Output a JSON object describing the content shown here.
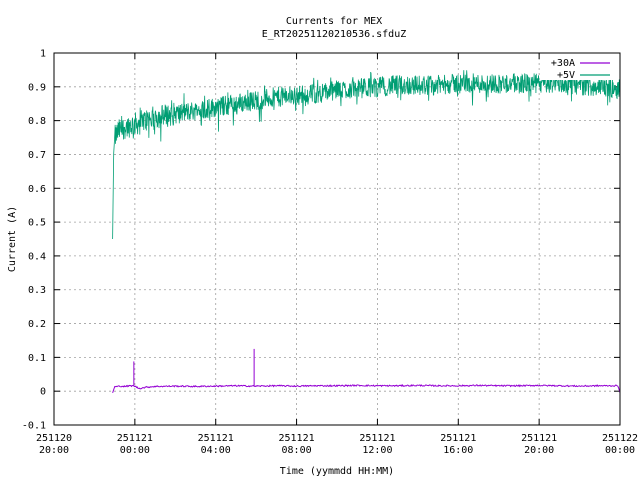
{
  "chart_data": {
    "type": "line",
    "title": "Currents for MEX",
    "subtitle": "E_RT20251120210536.sfduZ",
    "xlabel": "Time (yymmdd HH:MM)",
    "ylabel": "Current (A)",
    "ylim": [
      -0.1,
      1
    ],
    "y_ticks": [
      "-0.1",
      "0",
      "0.1",
      "0.2",
      "0.3",
      "0.4",
      "0.5",
      "0.6",
      "0.7",
      "0.8",
      "0.9",
      "1"
    ],
    "xlim_hours": [
      20,
      48
    ],
    "x_ticks": [
      {
        "date": "251120",
        "time": "20:00"
      },
      {
        "date": "251121",
        "time": "00:00"
      },
      {
        "date": "251121",
        "time": "04:00"
      },
      {
        "date": "251121",
        "time": "08:00"
      },
      {
        "date": "251121",
        "time": "12:00"
      },
      {
        "date": "251121",
        "time": "16:00"
      },
      {
        "date": "251121",
        "time": "20:00"
      },
      {
        "date": "251122",
        "time": "00:00"
      }
    ],
    "grid": true,
    "legend_position": "top-right",
    "series": [
      {
        "name": "+30A",
        "color": "#9400d3",
        "x": [
          22.9,
          23.0,
          23.3,
          23.5,
          23.8,
          24.0,
          24.2,
          24.6,
          25.0,
          26.0,
          27.0,
          28.0,
          29.0,
          30.0,
          31.0,
          32.0,
          33.0,
          34.0,
          35.0,
          36.0,
          37.0,
          38.0,
          39.0,
          40.0,
          41.0,
          42.0,
          43.0,
          44.0,
          45.0,
          46.0,
          47.0,
          47.9,
          48.0
        ],
        "y": [
          -0.005,
          0.013,
          0.015,
          0.014,
          0.016,
          0.015,
          0.008,
          0.012,
          0.014,
          0.015,
          0.014,
          0.015,
          0.016,
          0.015,
          0.016,
          0.015,
          0.016,
          0.016,
          0.017,
          0.016,
          0.016,
          0.017,
          0.016,
          0.016,
          0.017,
          0.016,
          0.016,
          0.017,
          0.016,
          0.015,
          0.016,
          0.016,
          -0.005
        ],
        "spikes": [
          {
            "x": 23.95,
            "y": 0.088
          },
          {
            "x": 29.9,
            "y": 0.125
          }
        ]
      },
      {
        "name": "+5V",
        "color": "#009e73",
        "x": [
          22.9,
          22.95,
          23.0,
          23.2,
          23.5,
          24.0,
          24.5,
          25.0,
          26.0,
          27.0,
          28.0,
          29.0,
          30.0,
          31.0,
          32.0,
          33.0,
          34.0,
          35.0,
          36.0,
          37.0,
          38.0,
          39.0,
          40.0,
          41.0,
          42.0,
          43.0,
          44.0,
          45.0,
          46.0,
          47.0,
          48.0
        ],
        "y": [
          0.45,
          0.7,
          0.75,
          0.77,
          0.78,
          0.79,
          0.8,
          0.81,
          0.82,
          0.83,
          0.84,
          0.85,
          0.86,
          0.87,
          0.875,
          0.88,
          0.89,
          0.895,
          0.9,
          0.905,
          0.905,
          0.905,
          0.91,
          0.91,
          0.91,
          0.91,
          0.91,
          0.91,
          0.905,
          0.9,
          0.895
        ]
      }
    ]
  }
}
